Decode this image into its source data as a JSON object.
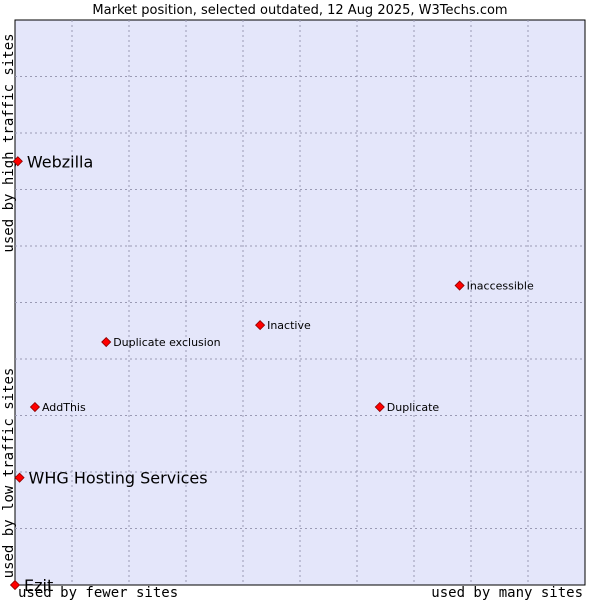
{
  "chart_data": {
    "type": "scatter",
    "title": "Market position, selected outdated, 12 Aug 2025, W3Techs.com",
    "x_axis": {
      "low_label": "used by fewer sites",
      "high_label": "used by many sites",
      "range": [
        0,
        10
      ]
    },
    "y_axis": {
      "low_label": "used by low traffic sites",
      "high_label": "used by high traffic sites",
      "range": [
        0,
        10
      ]
    },
    "grid": true,
    "points": [
      {
        "label": "Webzilla",
        "x": 0.05,
        "y": 7.5,
        "emphasis": true
      },
      {
        "label": "Inaccessible",
        "x": 7.8,
        "y": 5.3,
        "emphasis": false
      },
      {
        "label": "Inactive",
        "x": 4.3,
        "y": 4.6,
        "emphasis": false
      },
      {
        "label": "Duplicate exclusion",
        "x": 1.6,
        "y": 4.3,
        "emphasis": false
      },
      {
        "label": "AddThis",
        "x": 0.35,
        "y": 3.15,
        "emphasis": false
      },
      {
        "label": "Duplicate",
        "x": 6.4,
        "y": 3.15,
        "emphasis": false
      },
      {
        "label": "WHG Hosting Services",
        "x": 0.08,
        "y": 1.9,
        "emphasis": true
      },
      {
        "label": "Ezit",
        "x": 0.0,
        "y": 0.0,
        "emphasis": true
      }
    ],
    "colors": {
      "plot_background": "#e4e6fa",
      "grid": "#9a9ab4",
      "marker": "#ff0000"
    }
  }
}
